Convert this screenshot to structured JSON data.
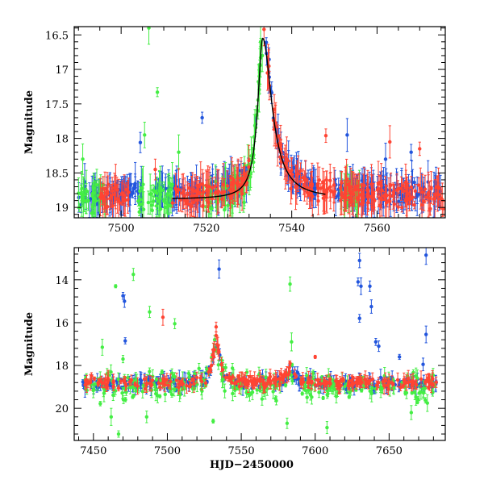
{
  "chart_data": [
    {
      "type": "scatter",
      "xlabel": "",
      "ylabel": "Magnitude",
      "xlim": [
        7489,
        7576
      ],
      "ylim": [
        19.15,
        16.38
      ],
      "y_inverted": true,
      "xticks_major": [
        7500,
        7520,
        7540,
        7560
      ],
      "xtick_labels": [
        "7500",
        "7520",
        "7540",
        "7560"
      ],
      "yticks_major": [
        16.5,
        17,
        17.5,
        18,
        18.5,
        19
      ],
      "ytick_labels": [
        "16.5",
        "17",
        "17.5",
        "18",
        "18.5",
        "19"
      ],
      "model_curve": {
        "color": "#000000",
        "baseline": 18.88,
        "peak_x": 7533.2,
        "peak_y": 16.55,
        "range": [
          7512,
          7548
        ]
      },
      "series": [
        {
          "color": "#2255dd",
          "baseline": 18.8,
          "scatter": 0.13,
          "segments": [
            [
              7490,
              7505
            ],
            [
              7508,
              7530
            ],
            [
              7534,
              7546
            ],
            [
              7550,
              7575
            ]
          ],
          "outliers": [
            {
              "x": 7504.5,
              "y": 18.06
            },
            {
              "x": 7519,
              "y": 17.7
            },
            {
              "x": 7531.5,
              "y": 17.8
            },
            {
              "x": 7537,
              "y": 18.0
            },
            {
              "x": 7553,
              "y": 17.95
            },
            {
              "x": 7562,
              "y": 18.3
            },
            {
              "x": 7568,
              "y": 18.2
            }
          ]
        },
        {
          "color": "#44ee44",
          "baseline": 18.85,
          "scatter": 0.2,
          "segments": [
            [
              7490,
              7497
            ],
            [
              7504,
              7512
            ],
            [
              7519,
              7533
            ],
            [
              7551,
              7556
            ]
          ],
          "outliers": [
            {
              "x": 7506.5,
              "y": 16.4
            },
            {
              "x": 7508.5,
              "y": 17.33
            },
            {
              "x": 7505.5,
              "y": 17.95
            },
            {
              "x": 7513.5,
              "y": 18.2
            },
            {
              "x": 7491,
              "y": 18.3
            },
            {
              "x": 7532.7,
              "y": 16.6
            },
            {
              "x": 7533.1,
              "y": 16.8
            },
            {
              "x": 7532.4,
              "y": 17.1
            }
          ]
        },
        {
          "color": "#ff4433",
          "baseline": 18.83,
          "scatter": 0.14,
          "segments": [
            [
              7495,
              7502
            ],
            [
              7512,
              7530
            ],
            [
              7534,
              7545
            ],
            [
              7546,
              7576
            ]
          ],
          "outliers": [
            {
              "x": 7533.5,
              "y": 16.42
            },
            {
              "x": 7548,
              "y": 17.96
            },
            {
              "x": 7563,
              "y": 18.05
            },
            {
              "x": 7570,
              "y": 18.15
            },
            {
              "x": 7508,
              "y": 18.45
            }
          ]
        }
      ]
    },
    {
      "type": "scatter",
      "xlabel": "HJD−2450000",
      "ylabel": "Magnitude",
      "xlim": [
        7437,
        7688
      ],
      "ylim": [
        21.5,
        12.5
      ],
      "y_inverted": true,
      "xticks_major": [
        7450,
        7500,
        7550,
        7600,
        7650
      ],
      "xtick_labels": [
        "7450",
        "7500",
        "7550",
        "7600",
        "7650"
      ],
      "yticks_major": [
        14,
        16,
        18,
        20
      ],
      "ytick_labels": [
        "14",
        "16",
        "18",
        "20"
      ],
      "series": [
        {
          "color": "#2255dd",
          "baseline": 18.85,
          "scatter": 0.25,
          "segments": [
            [
              7442,
              7682
            ]
          ],
          "outliers": [
            {
              "x": 7470,
              "y": 14.75
            },
            {
              "x": 7471,
              "y": 15.0
            },
            {
              "x": 7471.5,
              "y": 16.85
            },
            {
              "x": 7535,
              "y": 13.5
            },
            {
              "x": 7630,
              "y": 13.1
            },
            {
              "x": 7629,
              "y": 14.1
            },
            {
              "x": 7631,
              "y": 14.3
            },
            {
              "x": 7630,
              "y": 15.8
            },
            {
              "x": 7637,
              "y": 14.3
            },
            {
              "x": 7638,
              "y": 15.25
            },
            {
              "x": 7641,
              "y": 16.9
            },
            {
              "x": 7643,
              "y": 17.1
            },
            {
              "x": 7657,
              "y": 17.6
            },
            {
              "x": 7675,
              "y": 12.85
            },
            {
              "x": 7675,
              "y": 16.55
            },
            {
              "x": 7673,
              "y": 17.95
            }
          ]
        },
        {
          "color": "#44ee44",
          "baseline": 19.0,
          "scatter": 0.9,
          "segments": [
            [
              7442,
              7682
            ]
          ],
          "outliers": [
            {
              "x": 7465,
              "y": 14.3
            },
            {
              "x": 7477,
              "y": 13.75
            },
            {
              "x": 7488,
              "y": 15.5
            },
            {
              "x": 7505,
              "y": 16.05
            },
            {
              "x": 7456,
              "y": 17.15
            },
            {
              "x": 7470,
              "y": 17.7
            },
            {
              "x": 7583,
              "y": 14.2
            },
            {
              "x": 7532,
              "y": 16.8
            },
            {
              "x": 7584,
              "y": 16.9
            },
            {
              "x": 7462,
              "y": 20.4
            },
            {
              "x": 7467,
              "y": 21.2
            },
            {
              "x": 7486,
              "y": 20.4
            },
            {
              "x": 7531,
              "y": 20.6
            },
            {
              "x": 7581,
              "y": 20.7
            },
            {
              "x": 7608,
              "y": 20.9
            },
            {
              "x": 7665,
              "y": 20.2
            }
          ]
        },
        {
          "color": "#ff4433",
          "baseline": 18.8,
          "scatter": 0.2,
          "segments": [
            [
              7444,
              7682
            ]
          ],
          "outliers": [
            {
              "x": 7497,
              "y": 15.75
            },
            {
              "x": 7533,
              "y": 16.2
            },
            {
              "x": 7533,
              "y": 16.6
            },
            {
              "x": 7600,
              "y": 17.6
            },
            {
              "x": 7583,
              "y": 17.9
            }
          ]
        }
      ]
    }
  ]
}
